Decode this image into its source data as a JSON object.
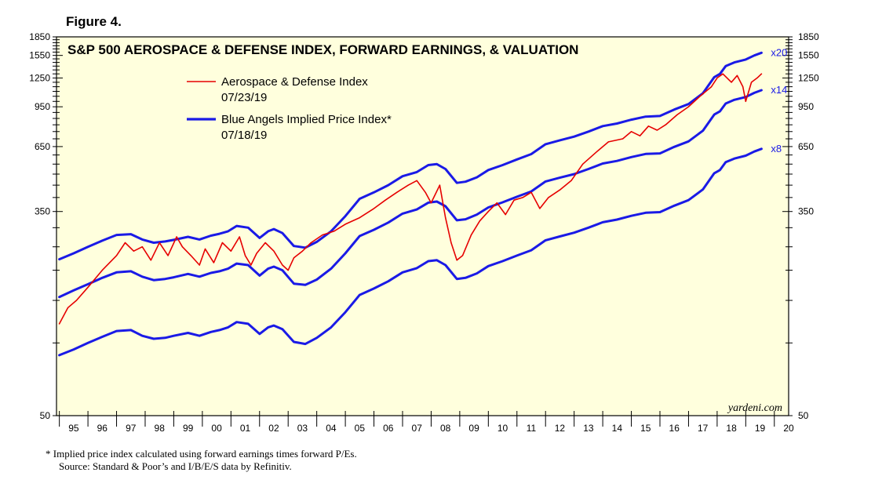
{
  "figure_label": "Figure 4.",
  "footnote": {
    "line1": "*   Implied price index calculated using forward earnings times forward P/Es.",
    "line2": "Source: Standard & Poor’s and I/B/E/S data by Refinitiv."
  },
  "colors": {
    "background": "#FFFFDD",
    "red": "#E60000",
    "blue": "#1A1AE6",
    "frame": "#000000"
  },
  "chart_data": {
    "type": "line",
    "title": "S&P 500 AEROSPACE & DEFENSE INDEX, FORWARD EARNINGS, & VALUATION",
    "watermark": "yardeni.com",
    "yscale": "log",
    "ylim": [
      50,
      1850
    ],
    "yticks": [
      50,
      350,
      650,
      950,
      1250,
      1550,
      1850
    ],
    "ytick_labels": [
      "50",
      "350",
      "650",
      "950",
      "1250",
      "1550",
      "1850"
    ],
    "xlim": [
      1994.9,
      2020.5
    ],
    "xtick_labels": [
      "95",
      "96",
      "97",
      "98",
      "99",
      "00",
      "01",
      "02",
      "03",
      "04",
      "05",
      "06",
      "07",
      "08",
      "09",
      "10",
      "11",
      "12",
      "13",
      "14",
      "15",
      "16",
      "17",
      "18",
      "19",
      "20"
    ],
    "legend": [
      {
        "name": "Aerospace & Defense Index",
        "date": "07/23/19",
        "color": "#E60000"
      },
      {
        "name": "Blue Angels Implied Price Index*",
        "date": "07/18/19",
        "color": "#1A1AE6"
      }
    ],
    "series": [
      {
        "name": "Aerospace & Defense Index",
        "color": "#E60000",
        "x": [
          1995.0,
          1995.3,
          1995.6,
          1996.0,
          1996.5,
          1997.0,
          1997.3,
          1997.6,
          1997.9,
          1998.2,
          1998.5,
          1998.8,
          1999.1,
          1999.3,
          1999.6,
          1999.9,
          2000.1,
          2000.4,
          2000.7,
          2001.0,
          2001.3,
          2001.5,
          2001.7,
          2001.9,
          2002.2,
          2002.5,
          2002.8,
          2003.0,
          2003.2,
          2003.5,
          2003.8,
          2004.2,
          2004.6,
          2005.0,
          2005.5,
          2006.0,
          2006.4,
          2006.8,
          2007.2,
          2007.5,
          2007.8,
          2008.0,
          2008.3,
          2008.5,
          2008.7,
          2008.9,
          2009.1,
          2009.4,
          2009.7,
          2010.0,
          2010.3,
          2010.6,
          2010.9,
          2011.2,
          2011.5,
          2011.8,
          2012.1,
          2012.5,
          2012.9,
          2013.3,
          2013.8,
          2014.2,
          2014.7,
          2015.0,
          2015.3,
          2015.6,
          2015.9,
          2016.2,
          2016.6,
          2017.0,
          2017.4,
          2017.8,
          2018.0,
          2018.2,
          2018.5,
          2018.7,
          2018.9,
          2019.0,
          2019.2,
          2019.4,
          2019.55
        ],
        "values": [
          120,
          140,
          150,
          170,
          200,
          230,
          260,
          240,
          250,
          220,
          260,
          230,
          275,
          250,
          230,
          210,
          245,
          215,
          260,
          240,
          275,
          230,
          210,
          235,
          260,
          240,
          210,
          200,
          225,
          240,
          260,
          280,
          290,
          310,
          330,
          360,
          390,
          420,
          450,
          470,
          420,
          380,
          450,
          330,
          260,
          220,
          230,
          280,
          320,
          350,
          380,
          340,
          390,
          400,
          420,
          360,
          400,
          430,
          470,
          550,
          620,
          680,
          700,
          750,
          720,
          790,
          760,
          800,
          880,
          950,
          1050,
          1150,
          1250,
          1300,
          1200,
          1280,
          1150,
          1000,
          1200,
          1250,
          1300
        ]
      },
      {
        "name": "Blue Angels Implied Price Index x20",
        "color": "#1A1AE6",
        "label": "x20",
        "x": [
          1995.0,
          1995.5,
          1996.0,
          1996.5,
          1997.0,
          1997.5,
          1997.9,
          1998.3,
          1998.7,
          1999.0,
          1999.5,
          1999.9,
          2000.3,
          2000.6,
          2000.9,
          2001.2,
          2001.6,
          2002.0,
          2002.3,
          2002.5,
          2002.8,
          2003.2,
          2003.6,
          2004.0,
          2004.5,
          2005.0,
          2005.5,
          2006.0,
          2006.5,
          2007.0,
          2007.5,
          2007.9,
          2008.2,
          2008.5,
          2008.9,
          2009.2,
          2009.6,
          2010.0,
          2010.5,
          2011.0,
          2011.5,
          2012.0,
          2012.5,
          2013.0,
          2013.5,
          2014.0,
          2014.5,
          2015.0,
          2015.5,
          2016.0,
          2016.5,
          2017.0,
          2017.5,
          2017.9,
          2018.1,
          2018.3,
          2018.6,
          2019.0,
          2019.3,
          2019.55
        ],
        "values": [
          222,
          235,
          250,
          265,
          280,
          282,
          268,
          260,
          263,
          267,
          275,
          268,
          278,
          283,
          290,
          305,
          300,
          272,
          290,
          296,
          285,
          252,
          248,
          262,
          290,
          335,
          395,
          420,
          450,
          490,
          510,
          545,
          550,
          525,
          460,
          465,
          485,
          520,
          545,
          575,
          605,
          665,
          690,
          715,
          750,
          790,
          810,
          840,
          865,
          870,
          925,
          975,
          1080,
          1260,
          1300,
          1400,
          1450,
          1490,
          1550,
          1590
        ]
      },
      {
        "name": "Blue Angels Implied Price Index x14",
        "color": "#1A1AE6",
        "label": "x14",
        "x": [
          1995.0,
          1995.5,
          1996.0,
          1996.5,
          1997.0,
          1997.5,
          1997.9,
          1998.3,
          1998.7,
          1999.0,
          1999.5,
          1999.9,
          2000.3,
          2000.6,
          2000.9,
          2001.2,
          2001.6,
          2002.0,
          2002.3,
          2002.5,
          2002.8,
          2003.2,
          2003.6,
          2004.0,
          2004.5,
          2005.0,
          2005.5,
          2006.0,
          2006.5,
          2007.0,
          2007.5,
          2007.9,
          2008.2,
          2008.5,
          2008.9,
          2009.2,
          2009.6,
          2010.0,
          2010.5,
          2011.0,
          2011.5,
          2012.0,
          2012.5,
          2013.0,
          2013.5,
          2014.0,
          2014.5,
          2015.0,
          2015.5,
          2016.0,
          2016.5,
          2017.0,
          2017.5,
          2017.9,
          2018.1,
          2018.3,
          2018.6,
          2019.0,
          2019.3,
          2019.55
        ],
        "values": [
          155,
          165,
          175,
          186,
          196,
          198,
          188,
          182,
          184,
          187,
          193,
          188,
          195,
          198,
          203,
          213,
          210,
          190,
          203,
          207,
          200,
          176,
          174,
          183,
          203,
          235,
          277,
          294,
          315,
          343,
          357,
          381,
          385,
          368,
          322,
          325,
          340,
          364,
          382,
          403,
          424,
          466,
          483,
          500,
          525,
          553,
          567,
          588,
          606,
          609,
          648,
          683,
          756,
          882,
          910,
          980,
          1015,
          1043,
          1085,
          1113
        ]
      },
      {
        "name": "Blue Angels Implied Price Index x8",
        "color": "#1A1AE6",
        "label": "x8",
        "x": [
          1995.0,
          1995.5,
          1996.0,
          1996.5,
          1997.0,
          1997.5,
          1997.9,
          1998.3,
          1998.7,
          1999.0,
          1999.5,
          1999.9,
          2000.3,
          2000.6,
          2000.9,
          2001.2,
          2001.6,
          2002.0,
          2002.3,
          2002.5,
          2002.8,
          2003.2,
          2003.6,
          2004.0,
          2004.5,
          2005.0,
          2005.5,
          2006.0,
          2006.5,
          2007.0,
          2007.5,
          2007.9,
          2008.2,
          2008.5,
          2008.9,
          2009.2,
          2009.6,
          2010.0,
          2010.5,
          2011.0,
          2011.5,
          2012.0,
          2012.5,
          2013.0,
          2013.5,
          2014.0,
          2014.5,
          2015.0,
          2015.5,
          2016.0,
          2016.5,
          2017.0,
          2017.5,
          2017.9,
          2018.1,
          2018.3,
          2018.6,
          2019.0,
          2019.3,
          2019.55
        ],
        "values": [
          89,
          94,
          100,
          106,
          112,
          113,
          107,
          104,
          105,
          107,
          110,
          107,
          111,
          113,
          116,
          122,
          120,
          109,
          116,
          118,
          114,
          101,
          99,
          105,
          116,
          134,
          158,
          168,
          180,
          196,
          204,
          218,
          220,
          210,
          184,
          186,
          194,
          208,
          218,
          230,
          242,
          266,
          276,
          286,
          300,
          316,
          324,
          336,
          346,
          348,
          370,
          390,
          432,
          504,
          520,
          560,
          580,
          596,
          620,
          636
        ]
      }
    ]
  }
}
